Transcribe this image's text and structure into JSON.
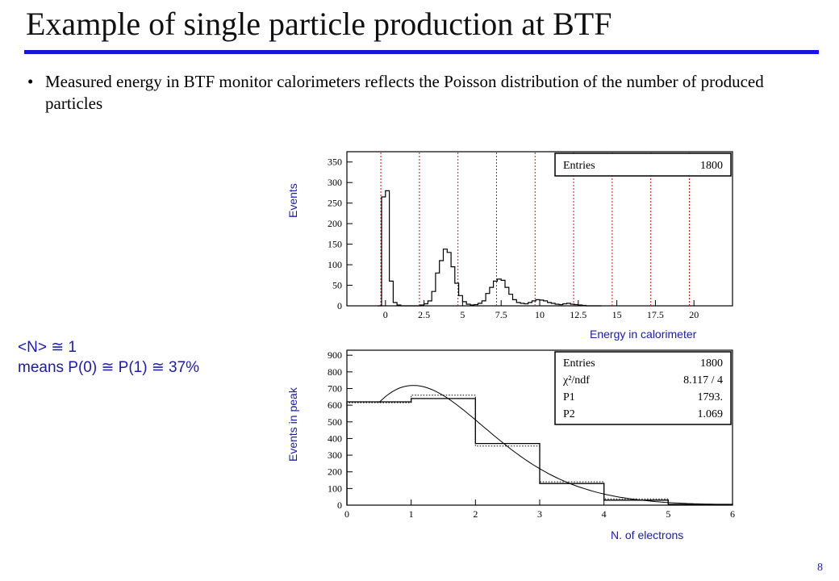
{
  "slide": {
    "title": "Example of single particle production at BTF",
    "bullet": "Measured energy in BTF monitor calorimeters reflects the Poisson distribution of the number of produced particles",
    "note_line1": "<N> ≅ 1",
    "note_line2": "means P(0) ≅ P(1) ≅ 37%",
    "page_number": "8",
    "accent_color": "#1515e0",
    "label_color": "#1a1ab0"
  },
  "chart_data": [
    {
      "type": "bar",
      "title": "",
      "xlabel": "Energy in calorimeter",
      "ylabel": "Events",
      "xlim": [
        -2.5,
        22.5
      ],
      "ylim": [
        0,
        375
      ],
      "xticks": [
        0,
        2.5,
        5,
        7.5,
        10,
        12.5,
        15,
        17.5,
        20
      ],
      "xtick_labels": [
        "0",
        "2.5",
        "5",
        "7.5",
        "10",
        "12.5",
        "15",
        "17.5",
        "20"
      ],
      "yticks": [
        0,
        50,
        100,
        150,
        200,
        250,
        300,
        350
      ],
      "stats_box": [
        {
          "label": "Entries",
          "value": "1800"
        }
      ],
      "cut_lines": [
        -0.3,
        2.2,
        4.7,
        7.2,
        9.7,
        12.2,
        14.7,
        17.2,
        19.7
      ],
      "bin_edges": [
        -0.5,
        -0.25,
        0,
        0.25,
        0.5,
        0.75,
        1,
        1.25,
        1.5,
        1.75,
        2,
        2.25,
        2.5,
        2.75,
        3,
        3.25,
        3.5,
        3.75,
        4,
        4.25,
        4.5,
        4.75,
        5,
        5.25,
        5.5,
        5.75,
        6,
        6.25,
        6.5,
        6.75,
        7,
        7.25,
        7.5,
        7.75,
        8,
        8.25,
        8.5,
        8.75,
        9,
        9.25,
        9.5,
        9.75,
        10,
        10.25,
        10.5,
        10.75,
        11,
        11.25,
        11.5,
        11.75,
        12,
        12.25,
        12.5,
        12.75,
        13,
        13.25,
        13.5,
        13.75,
        14
      ],
      "values": [
        0,
        265,
        280,
        60,
        8,
        2,
        0,
        0,
        0,
        0,
        0,
        2,
        5,
        12,
        35,
        80,
        110,
        138,
        130,
        95,
        55,
        25,
        10,
        4,
        2,
        3,
        6,
        12,
        30,
        45,
        60,
        65,
        62,
        45,
        28,
        15,
        8,
        6,
        5,
        8,
        12,
        15,
        14,
        12,
        8,
        6,
        4,
        3,
        5,
        6,
        4,
        3,
        2,
        1,
        0,
        0,
        0,
        0
      ]
    },
    {
      "type": "bar",
      "title": "",
      "xlabel": "N. of electrons",
      "ylabel": "Events in peak",
      "xlim": [
        0,
        6
      ],
      "ylim": [
        0,
        930
      ],
      "xticks": [
        0,
        1,
        2,
        3,
        4,
        5,
        6
      ],
      "xtick_labels": [
        "0",
        "1",
        "2",
        "3",
        "4",
        "5",
        "6"
      ],
      "yticks": [
        0,
        100,
        200,
        300,
        400,
        500,
        600,
        700,
        800,
        900
      ],
      "stats_box": [
        {
          "label": "Entries",
          "value": "1800"
        },
        {
          "label": "χ²/ndf",
          "value": "8.117   /   4"
        },
        {
          "label": "P1",
          "value": "1793."
        },
        {
          "label": "P2",
          "value": "1.069"
        }
      ],
      "series": [
        {
          "style": "solid",
          "bin_edges": [
            0,
            1,
            2,
            3,
            4,
            5,
            6
          ],
          "values": [
            620,
            640,
            370,
            130,
            30,
            5
          ]
        },
        {
          "style": "dotted",
          "bin_edges": [
            0,
            1,
            2,
            3,
            4,
            5,
            6
          ],
          "values": [
            615,
            660,
            355,
            140,
            38,
            5
          ]
        }
      ],
      "fit": {
        "type": "poisson",
        "P1": 1793,
        "P2": 1.069,
        "x_range": [
          0.5,
          6
        ]
      }
    }
  ]
}
